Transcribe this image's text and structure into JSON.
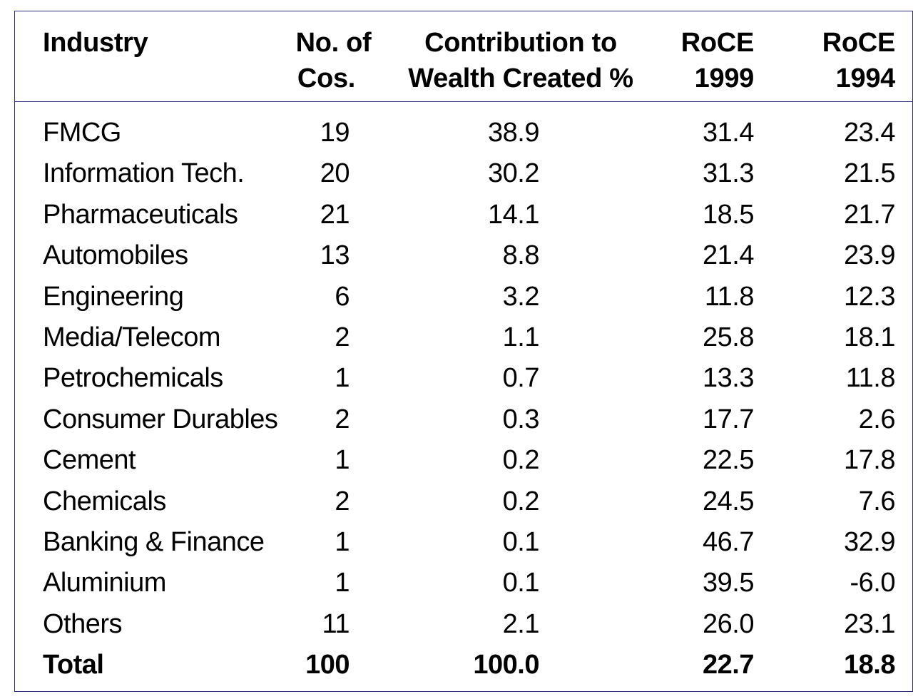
{
  "headers": {
    "industry": "Industry",
    "cos_line1": "No. of",
    "cos_line2": "Cos.",
    "contrib_line1": "Contribution to",
    "contrib_line2": "Wealth Created %",
    "roce99_line1": "RoCE",
    "roce99_line2": "1999",
    "roce94_line1": "RoCE",
    "roce94_line2": "1994"
  },
  "rows": [
    {
      "industry": "FMCG",
      "cos": "19",
      "contrib": "38.9",
      "roce1999": "31.4",
      "roce1994": "23.4"
    },
    {
      "industry": "Information Tech.",
      "cos": "20",
      "contrib": "30.2",
      "roce1999": "31.3",
      "roce1994": "21.5"
    },
    {
      "industry": "Pharmaceuticals",
      "cos": "21",
      "contrib": "14.1",
      "roce1999": "18.5",
      "roce1994": "21.7"
    },
    {
      "industry": "Automobiles",
      "cos": "13",
      "contrib": "8.8",
      "roce1999": "21.4",
      "roce1994": "23.9"
    },
    {
      "industry": "Engineering",
      "cos": "6",
      "contrib": "3.2",
      "roce1999": "11.8",
      "roce1994": "12.3"
    },
    {
      "industry": "Media/Telecom",
      "cos": "2",
      "contrib": "1.1",
      "roce1999": "25.8",
      "roce1994": "18.1"
    },
    {
      "industry": "Petrochemicals",
      "cos": "1",
      "contrib": "0.7",
      "roce1999": "13.3",
      "roce1994": "11.8"
    },
    {
      "industry": "Consumer Durables",
      "cos": "2",
      "contrib": "0.3",
      "roce1999": "17.7",
      "roce1994": "2.6"
    },
    {
      "industry": "Cement",
      "cos": "1",
      "contrib": "0.2",
      "roce1999": "22.5",
      "roce1994": "17.8"
    },
    {
      "industry": "Chemicals",
      "cos": "2",
      "contrib": "0.2",
      "roce1999": "24.5",
      "roce1994": "7.6"
    },
    {
      "industry": "Banking & Finance",
      "cos": "1",
      "contrib": "0.1",
      "roce1999": "46.7",
      "roce1994": "32.9"
    },
    {
      "industry": "Aluminium",
      "cos": "1",
      "contrib": "0.1",
      "roce1999": "39.5",
      "roce1994": "-6.0"
    },
    {
      "industry": "Others",
      "cos": "11",
      "contrib": "2.1",
      "roce1999": "26.0",
      "roce1994": "23.1"
    }
  ],
  "total": {
    "industry": "Total",
    "cos": "100",
    "contrib": "100.0",
    "roce1999": "22.7",
    "roce1994": "18.8"
  },
  "colors": {
    "border": "#2e2e80",
    "text": "#000000"
  }
}
